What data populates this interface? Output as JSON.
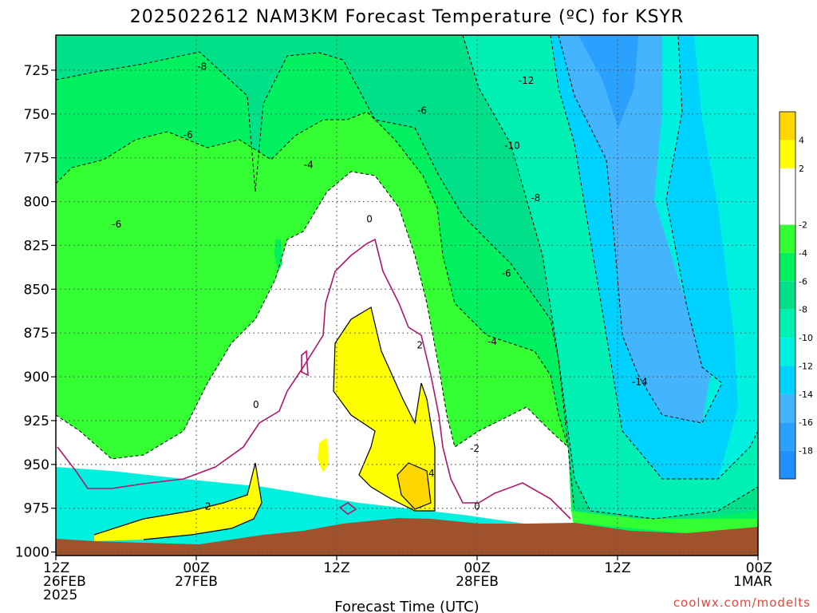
{
  "chart_data": {
    "type": "contour",
    "title": "2025022612 NAM3KM Forecast Temperature (ºC) for KSYR",
    "xlabel": "Forecast Time (UTC)",
    "ylabel": "",
    "credit": "coolwx.com/modelts",
    "y_ticks": [
      725,
      750,
      775,
      800,
      825,
      850,
      875,
      900,
      925,
      950,
      975,
      1000
    ],
    "ylim": [
      1002,
      705
    ],
    "x_ticks": [
      {
        "hour": 0,
        "lines": [
          "12Z",
          "26FEB",
          "2025"
        ]
      },
      {
        "hour": 12,
        "lines": [
          "00Z",
          "27FEB"
        ]
      },
      {
        "hour": 24,
        "lines": [
          "12Z"
        ]
      },
      {
        "hour": 36,
        "lines": [
          "00Z",
          "28FEB"
        ]
      },
      {
        "hour": 48,
        "lines": [
          "12Z"
        ]
      },
      {
        "hour": 60,
        "lines": [
          "00Z",
          "1MAR"
        ]
      }
    ],
    "xlim_hours": [
      0,
      60
    ],
    "grid": true,
    "colorbar": {
      "bands": [
        {
          "lo": -20,
          "hi": -18,
          "color": "#1e90ff"
        },
        {
          "lo": -18,
          "hi": -16,
          "color": "#2aa0ff"
        },
        {
          "lo": -16,
          "hi": -14,
          "color": "#45b4ff"
        },
        {
          "lo": -14,
          "hi": -12,
          "color": "#00d2ff"
        },
        {
          "lo": -12,
          "hi": -10,
          "color": "#00f0e0"
        },
        {
          "lo": -10,
          "hi": -8,
          "color": "#00f0b4"
        },
        {
          "lo": -8,
          "hi": -6,
          "color": "#00e088"
        },
        {
          "lo": -6,
          "hi": -4,
          "color": "#00f060"
        },
        {
          "lo": -4,
          "hi": -2,
          "color": "#33ff33"
        },
        {
          "lo": -2,
          "hi": 2,
          "color": "#ffffff"
        },
        {
          "lo": 2,
          "hi": 4,
          "color": "#ffff00"
        },
        {
          "lo": 4,
          "hi": 6,
          "color": "#ffd700"
        }
      ],
      "labels": [
        "4",
        "2",
        "-2",
        "-4",
        "-6",
        "-8",
        "-10",
        "-12",
        "-14",
        "-16",
        "-18"
      ]
    },
    "contour_labels": [
      {
        "text": "-8",
        "hour": 12.5,
        "p": 723
      },
      {
        "text": "-6",
        "hour": 11.3,
        "p": 762
      },
      {
        "text": "-4",
        "hour": 21.6,
        "p": 779
      },
      {
        "text": "-6",
        "hour": 5.2,
        "p": 813
      },
      {
        "text": "-12",
        "hour": 40.2,
        "p": 731
      },
      {
        "text": "-6",
        "hour": 31.3,
        "p": 748
      },
      {
        "text": "-10",
        "hour": 39.0,
        "p": 768
      },
      {
        "text": "-8",
        "hour": 41.0,
        "p": 798
      },
      {
        "text": "-6",
        "hour": 38.5,
        "p": 841
      },
      {
        "text": "-4",
        "hour": 37.3,
        "p": 880
      },
      {
        "text": "-2",
        "hour": 35.8,
        "p": 941
      },
      {
        "text": "0",
        "hour": 26.8,
        "p": 810
      },
      {
        "text": "0",
        "hour": 17.1,
        "p": 916
      },
      {
        "text": "0",
        "hour": 36.0,
        "p": 974
      },
      {
        "text": "2",
        "hour": 31.1,
        "p": 882
      },
      {
        "text": "2",
        "hour": 13.0,
        "p": 974
      },
      {
        "text": "4",
        "hour": 32.1,
        "p": 955
      },
      {
        "text": "-14",
        "hour": 49.9,
        "p": 903
      }
    ]
  }
}
